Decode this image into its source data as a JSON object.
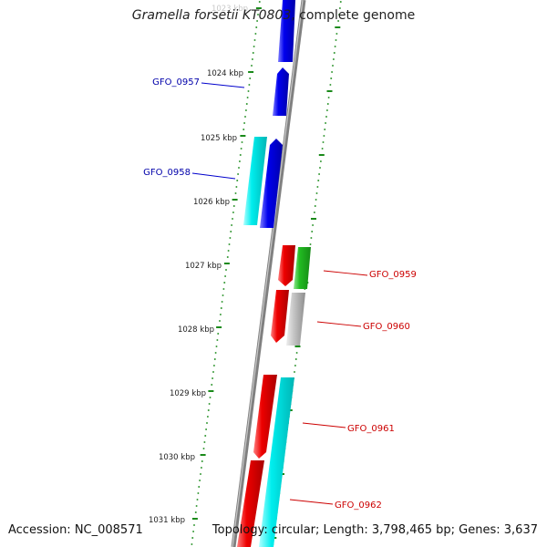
{
  "title": {
    "organism": "Gramella forsetii KT0803",
    "suffix": ", complete genome"
  },
  "colors": {
    "backbone": "#808080",
    "tick": "#1a8a1a",
    "blue_gene": "#0000ee",
    "cyan_gene": "#00eeee",
    "red_gene": "#ee0000",
    "green_gene": "#22bb22",
    "grey_gene": "#b8b8b8",
    "blue_label": "#0000aa",
    "red_label": "#cc0000"
  },
  "kbp_labels": [
    "1023 kbp",
    "1024 kbp",
    "1025 kbp",
    "1026 kbp",
    "1027 kbp",
    "1028 kbp",
    "1029 kbp",
    "1030 kbp",
    "1031 kbp"
  ],
  "genes": [
    {
      "name": "GFO_0957",
      "strand": "left"
    },
    {
      "name": "GFO_0958",
      "strand": "left"
    },
    {
      "name": "GFO_0959",
      "strand": "right"
    },
    {
      "name": "GFO_0960",
      "strand": "right"
    },
    {
      "name": "GFO_0961",
      "strand": "right"
    },
    {
      "name": "GFO_0962",
      "strand": "right"
    }
  ],
  "footer": {
    "accession": "Accession: NC_008571",
    "topology": "Topology: circular; Length: 3,798,465 bp; Genes: 3,637"
  }
}
